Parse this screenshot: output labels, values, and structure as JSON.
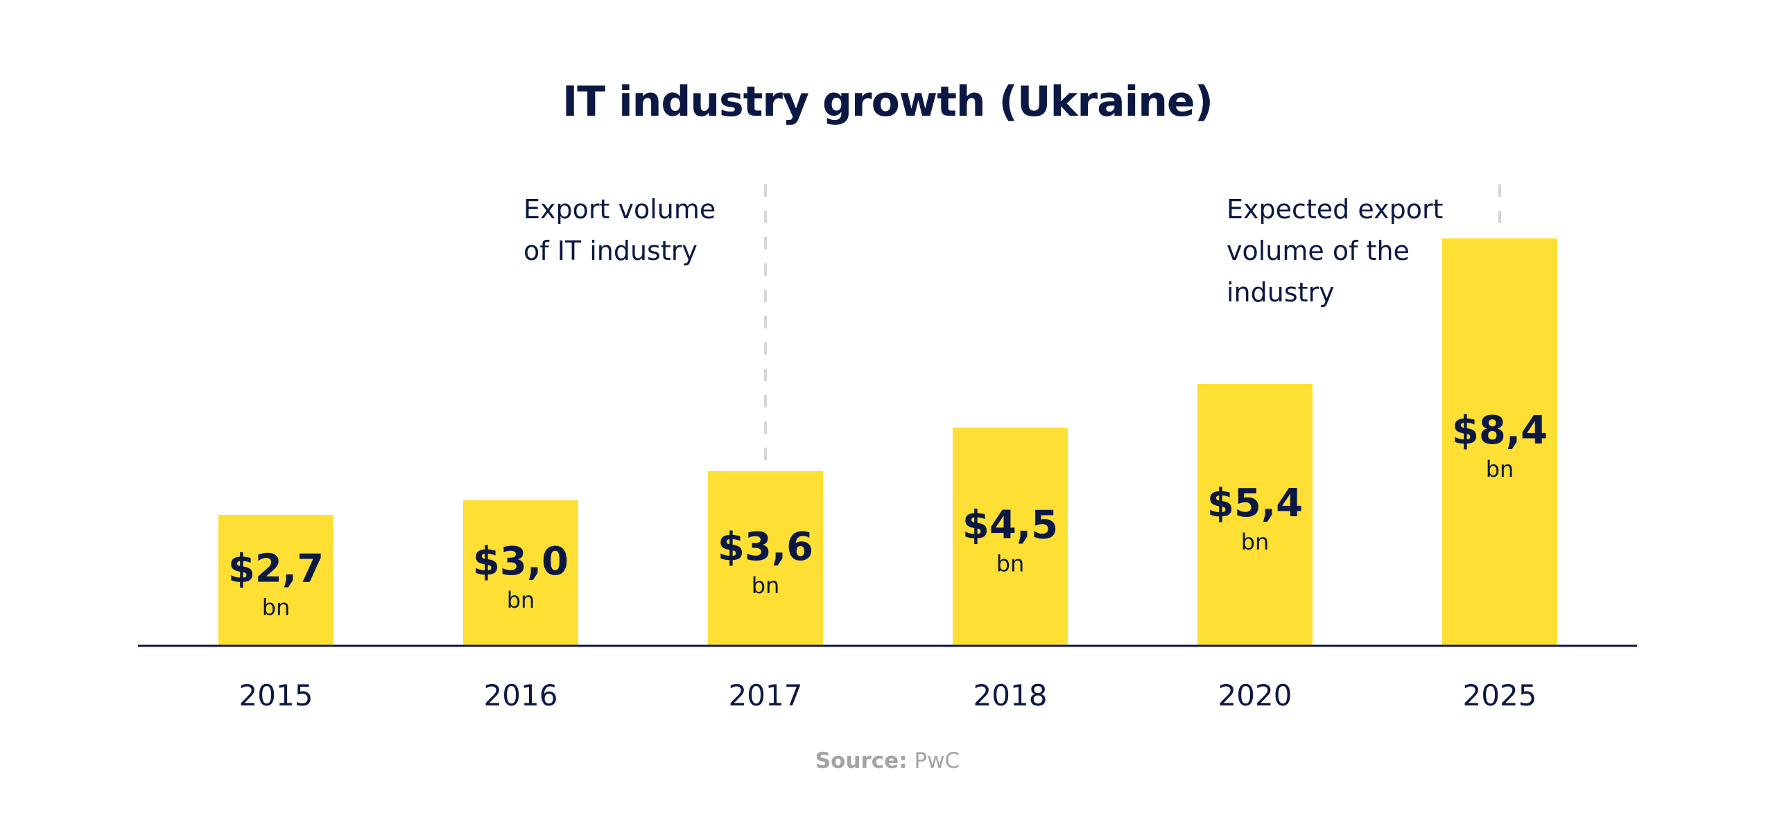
{
  "chart_data": {
    "type": "bar",
    "title": "IT industry growth (Ukraine)",
    "categories": [
      "2015",
      "2016",
      "2017",
      "2018",
      "2020",
      "2025"
    ],
    "values": [
      2.7,
      3.0,
      3.6,
      4.5,
      5.4,
      8.4
    ],
    "value_labels": [
      "$2,7",
      "$3,0",
      "$3,6",
      "$4,5",
      "$5,4",
      "$8,4"
    ],
    "unit_label": "bn",
    "xlabel": "",
    "ylabel": "",
    "ylim": [
      0,
      9
    ],
    "grid": false,
    "bar_color": "#FFDF33",
    "text_color": "#0c1844",
    "annotations": [
      {
        "category": "2017",
        "lines": [
          "Export volume",
          "of IT industry"
        ]
      },
      {
        "category": "2025",
        "lines": [
          "Expected export",
          "volume of the",
          "industry"
        ]
      }
    ],
    "source_label": "Source:",
    "source_value": "PwC"
  }
}
